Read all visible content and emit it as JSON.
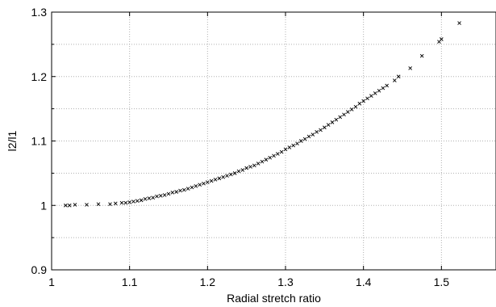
{
  "chart_data": {
    "type": "scatter",
    "title": "",
    "xlabel": "Radial stretch ratio",
    "ylabel": "l2/l1",
    "xlim": [
      1,
      1.57
    ],
    "ylim": [
      0.9,
      1.3
    ],
    "xticks": [
      1,
      1.1,
      1.2,
      1.3,
      1.4,
      1.5
    ],
    "yticks": [
      0.9,
      1,
      1.1,
      1.2,
      1.3
    ],
    "xtick_labels": [
      "1",
      "1.1",
      "1.2",
      "1.3",
      "1.4",
      "1.5"
    ],
    "ytick_labels": [
      "0.9",
      "1",
      "1.1",
      "1.2",
      "1.3"
    ],
    "grid": true,
    "marker": "x",
    "marker_color": "#000000",
    "series": [
      {
        "x": [
          1.018,
          1.023,
          1.03,
          1.045,
          1.06,
          1.075,
          1.082,
          1.09,
          1.095,
          1.1,
          1.105,
          1.11,
          1.115,
          1.12,
          1.125,
          1.13,
          1.135,
          1.14,
          1.145,
          1.15,
          1.155,
          1.16,
          1.165,
          1.17,
          1.175,
          1.18,
          1.185,
          1.19,
          1.195,
          1.2,
          1.205,
          1.21,
          1.215,
          1.22,
          1.225,
          1.23,
          1.235,
          1.24,
          1.245,
          1.25,
          1.255,
          1.26,
          1.265,
          1.27,
          1.275,
          1.28,
          1.285,
          1.29,
          1.295,
          1.3,
          1.305,
          1.31,
          1.315,
          1.32,
          1.325,
          1.33,
          1.335,
          1.34,
          1.345,
          1.35,
          1.355,
          1.36,
          1.365,
          1.37,
          1.375,
          1.38,
          1.385,
          1.39,
          1.395,
          1.4,
          1.405,
          1.41,
          1.415,
          1.42,
          1.425,
          1.43,
          1.44,
          1.445,
          1.46,
          1.475,
          1.497,
          1.5,
          1.523
        ],
        "y": [
          1.0,
          1.0,
          1.001,
          1.001,
          1.002,
          1.002,
          1.003,
          1.004,
          1.004,
          1.005,
          1.006,
          1.007,
          1.008,
          1.01,
          1.011,
          1.012,
          1.014,
          1.015,
          1.016,
          1.018,
          1.02,
          1.021,
          1.023,
          1.024,
          1.026,
          1.028,
          1.03,
          1.032,
          1.034,
          1.036,
          1.038,
          1.04,
          1.042,
          1.044,
          1.046,
          1.048,
          1.05,
          1.053,
          1.055,
          1.058,
          1.06,
          1.062,
          1.065,
          1.068,
          1.071,
          1.074,
          1.077,
          1.08,
          1.083,
          1.087,
          1.09,
          1.093,
          1.096,
          1.1,
          1.103,
          1.107,
          1.11,
          1.114,
          1.117,
          1.121,
          1.125,
          1.129,
          1.133,
          1.137,
          1.141,
          1.145,
          1.149,
          1.153,
          1.158,
          1.162,
          1.166,
          1.17,
          1.174,
          1.178,
          1.182,
          1.186,
          1.194,
          1.2,
          1.213,
          1.232,
          1.254,
          1.258,
          1.283
        ]
      }
    ]
  }
}
